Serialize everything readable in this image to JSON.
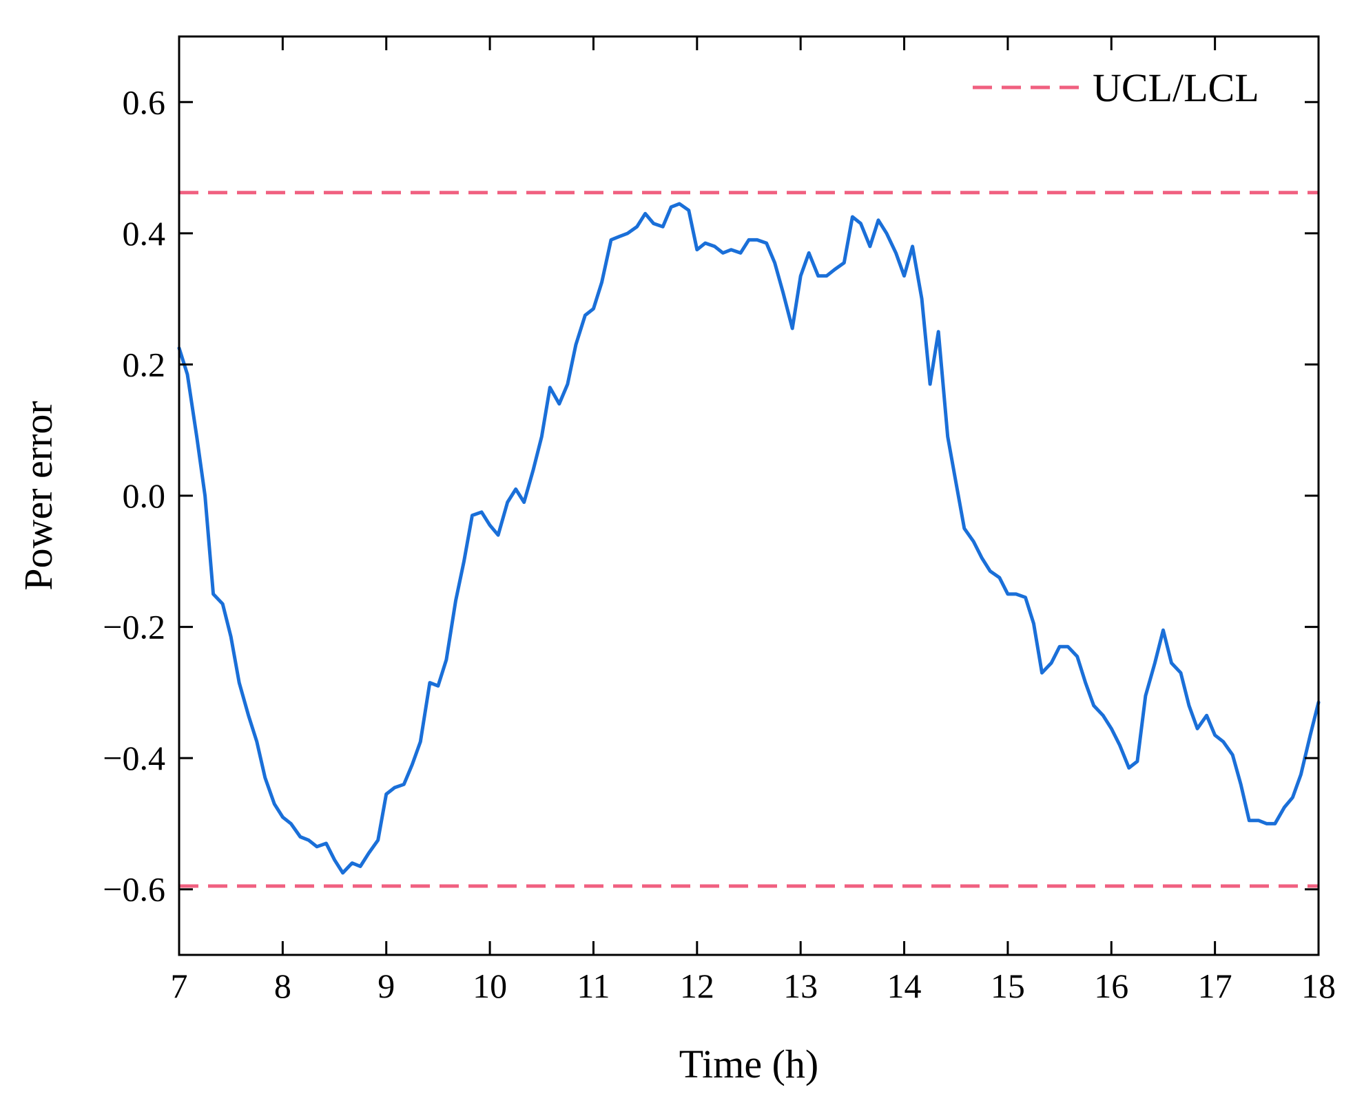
{
  "chart_data": {
    "type": "line",
    "title": "",
    "xlabel": "Time (h)",
    "ylabel": "Power error",
    "xlim": [
      7,
      18
    ],
    "ylim": [
      -0.7,
      0.7
    ],
    "x_ticks": [
      7,
      8,
      9,
      10,
      11,
      12,
      13,
      14,
      15,
      16,
      17,
      18
    ],
    "x_tick_labels": [
      "7",
      "8",
      "9",
      "10",
      "11",
      "12",
      "13",
      "14",
      "15",
      "16",
      "17",
      "18"
    ],
    "y_ticks": [
      -0.6,
      -0.4,
      -0.2,
      0.0,
      0.2,
      0.4,
      0.6
    ],
    "y_tick_labels": [
      "−0.6",
      "−0.4",
      "−0.2",
      "0.0",
      "0.2",
      "0.4",
      "0.6"
    ],
    "grid": false,
    "legend": {
      "placement": "top-right",
      "entries": [
        {
          "label": "UCL/LCL",
          "style": "dashed",
          "color": "#f06080"
        }
      ]
    },
    "control_limits": {
      "ucl": 0.462,
      "lcl": -0.595,
      "color": "#f06080"
    },
    "series": [
      {
        "color": "#1a6fd8",
        "x": [
          7.0,
          7.08,
          7.17,
          7.25,
          7.33,
          7.42,
          7.5,
          7.58,
          7.67,
          7.75,
          7.83,
          7.92,
          8.0,
          8.08,
          8.17,
          8.25,
          8.33,
          8.42,
          8.5,
          8.58,
          8.67,
          8.75,
          8.83,
          8.92,
          9.0,
          9.08,
          9.17,
          9.25,
          9.33,
          9.42,
          9.5,
          9.58,
          9.67,
          9.75,
          9.83,
          9.92,
          10.0,
          10.08,
          10.17,
          10.25,
          10.33,
          10.42,
          10.5,
          10.58,
          10.67,
          10.75,
          10.83,
          10.92,
          11.0,
          11.08,
          11.17,
          11.25,
          11.33,
          11.42,
          11.5,
          11.58,
          11.67,
          11.75,
          11.83,
          11.92,
          12.0,
          12.08,
          12.17,
          12.25,
          12.33,
          12.42,
          12.5,
          12.58,
          12.67,
          12.75,
          12.83,
          12.92,
          13.0,
          13.08,
          13.17,
          13.25,
          13.33,
          13.42,
          13.5,
          13.58,
          13.67,
          13.75,
          13.83,
          13.92,
          14.0,
          14.08,
          14.17,
          14.25,
          14.33,
          14.42,
          14.5,
          14.58,
          14.67,
          14.75,
          14.83,
          14.92,
          15.0,
          15.08,
          15.17,
          15.25,
          15.33,
          15.42,
          15.5,
          15.58,
          15.67,
          15.75,
          15.83,
          15.92,
          16.0,
          16.08,
          16.17,
          16.25,
          16.33,
          16.42,
          16.5,
          16.58,
          16.67,
          16.75,
          16.83,
          16.92,
          17.0,
          17.08,
          17.17,
          17.25,
          17.33,
          17.42,
          17.5,
          17.58,
          17.67,
          17.75,
          17.83,
          17.92,
          18.0
        ],
        "values": [
          0.225,
          0.185,
          0.09,
          0.0,
          -0.15,
          -0.165,
          -0.215,
          -0.285,
          -0.335,
          -0.375,
          -0.43,
          -0.47,
          -0.49,
          -0.5,
          -0.52,
          -0.525,
          -0.535,
          -0.53,
          -0.555,
          -0.575,
          -0.56,
          -0.565,
          -0.545,
          -0.525,
          -0.455,
          -0.445,
          -0.44,
          -0.41,
          -0.375,
          -0.285,
          -0.29,
          -0.25,
          -0.16,
          -0.1,
          -0.03,
          -0.025,
          -0.045,
          -0.06,
          -0.01,
          0.01,
          -0.01,
          0.04,
          0.09,
          0.165,
          0.14,
          0.17,
          0.23,
          0.275,
          0.285,
          0.325,
          0.39,
          0.395,
          0.4,
          0.41,
          0.43,
          0.415,
          0.41,
          0.44,
          0.445,
          0.435,
          0.375,
          0.385,
          0.38,
          0.37,
          0.375,
          0.37,
          0.39,
          0.39,
          0.385,
          0.355,
          0.31,
          0.255,
          0.335,
          0.37,
          0.335,
          0.335,
          0.345,
          0.355,
          0.425,
          0.415,
          0.38,
          0.42,
          0.4,
          0.37,
          0.335,
          0.38,
          0.3,
          0.17,
          0.25,
          0.09,
          0.02,
          -0.05,
          -0.07,
          -0.095,
          -0.115,
          -0.125,
          -0.15,
          -0.15,
          -0.155,
          -0.195,
          -0.27,
          -0.255,
          -0.23,
          -0.23,
          -0.245,
          -0.285,
          -0.32,
          -0.335,
          -0.355,
          -0.38,
          -0.415,
          -0.405,
          -0.305,
          -0.255,
          -0.205,
          -0.255,
          -0.27,
          -0.32,
          -0.355,
          -0.335,
          -0.365,
          -0.375,
          -0.395,
          -0.44,
          -0.495,
          -0.495,
          -0.5,
          -0.5,
          -0.475,
          -0.46,
          -0.425,
          -0.365,
          -0.315
        ]
      }
    ]
  }
}
